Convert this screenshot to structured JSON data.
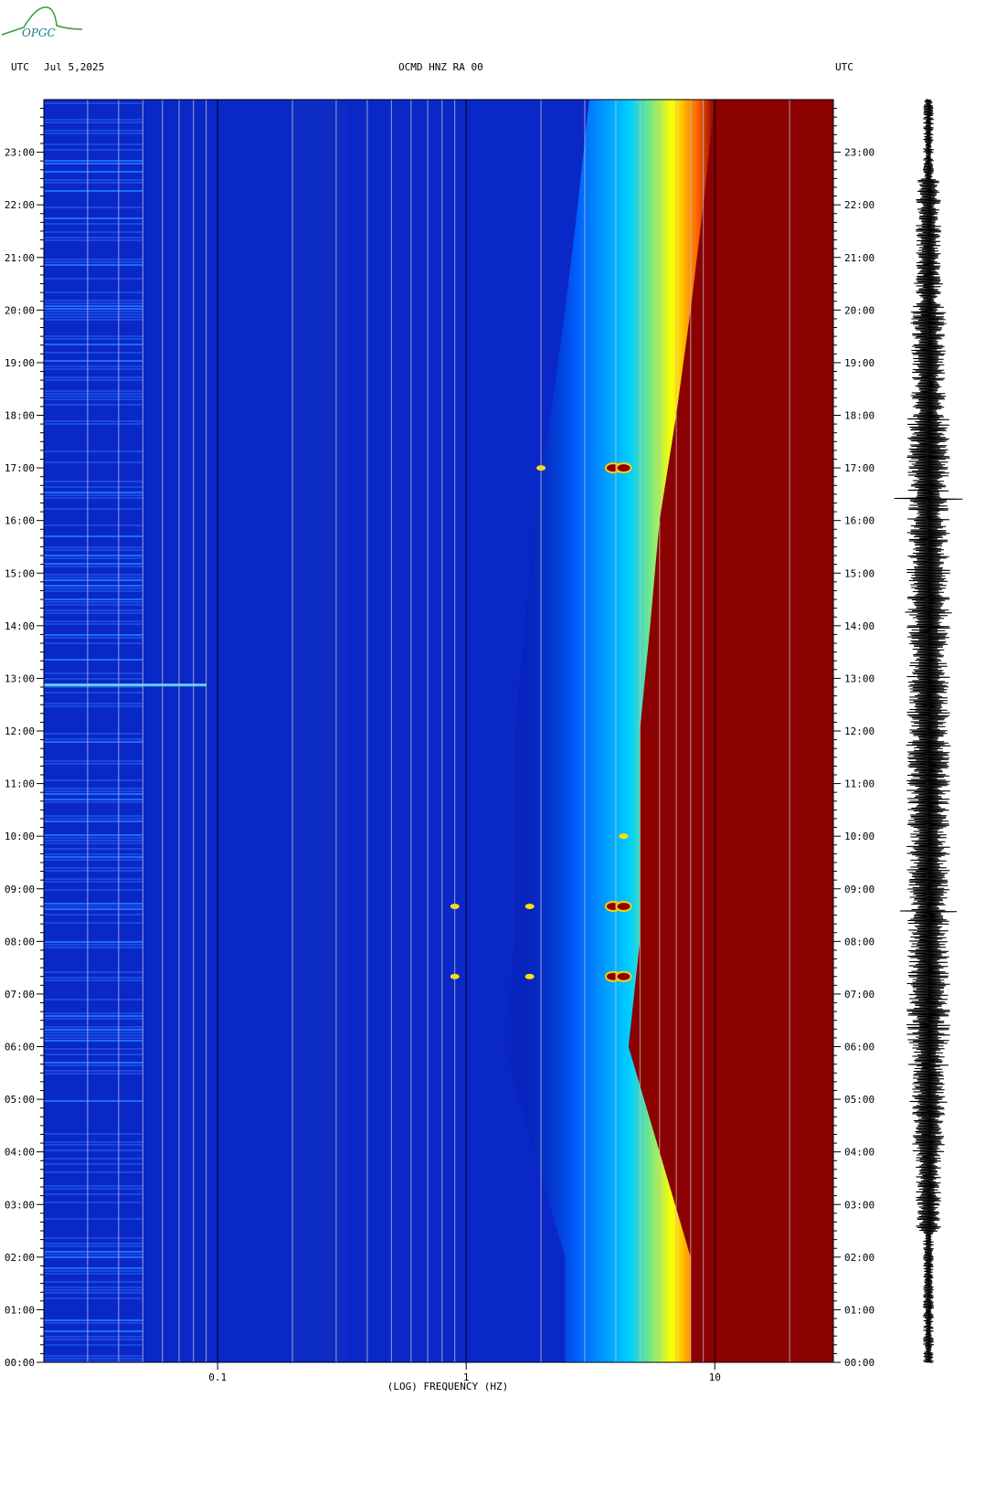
{
  "header": {
    "left_tz": "UTC",
    "date": "Jul 5,2025",
    "station": "OCMD HNZ RA 00",
    "right_tz": "UTC"
  },
  "logo": {
    "text": "OPGC"
  },
  "colors": {
    "low": "#00007f",
    "mid": "#00cfff",
    "high": "#ffff00",
    "max": "#8b0000",
    "seismo": "#000000"
  },
  "chart_data": {
    "type": "heatmap",
    "title": "OCMD HNZ RA 00",
    "xlabel": "(LOG) FREQUENCY (HZ)",
    "ylabel": "",
    "x_scale": "log",
    "xlim": [
      0.02,
      30
    ],
    "x_ticks": [
      0.1,
      1,
      10
    ],
    "x_tick_labels": [
      "0.1",
      "1",
      "10"
    ],
    "ylim": [
      "00:00",
      "24:00"
    ],
    "y_tick_labels": [
      "00:00",
      "01:00",
      "02:00",
      "03:00",
      "04:00",
      "05:00",
      "06:00",
      "07:00",
      "08:00",
      "09:00",
      "10:00",
      "11:00",
      "12:00",
      "13:00",
      "14:00",
      "15:00",
      "16:00",
      "17:00",
      "18:00",
      "19:00",
      "20:00",
      "21:00",
      "22:00",
      "23:00"
    ],
    "saturation_onset_hz": [
      {
        "hour": 0,
        "freq": 8
      },
      {
        "hour": 2,
        "freq": 8
      },
      {
        "hour": 4,
        "freq": 6
      },
      {
        "hour": 6,
        "freq": 4.5
      },
      {
        "hour": 8,
        "freq": 5
      },
      {
        "hour": 10,
        "freq": 5
      },
      {
        "hour": 12,
        "freq": 5
      },
      {
        "hour": 14,
        "freq": 5.5
      },
      {
        "hour": 16,
        "freq": 6
      },
      {
        "hour": 18,
        "freq": 7
      },
      {
        "hour": 20,
        "freq": 8
      },
      {
        "hour": 22,
        "freq": 9
      },
      {
        "hour": 24,
        "freq": 10
      }
    ],
    "events": [
      {
        "time": "07:20",
        "freqs": [
          0.9,
          1.8,
          3.9,
          4.3
        ]
      },
      {
        "time": "08:40",
        "freqs": [
          0.9,
          1.8,
          3.9,
          4.3
        ]
      },
      {
        "time": "10:00",
        "freqs": [
          4.3
        ]
      },
      {
        "time": "17:00",
        "freqs": [
          2.0,
          3.9,
          4.3
        ]
      },
      {
        "time": "12:55",
        "freqs": [
          0.025
        ]
      }
    ]
  }
}
